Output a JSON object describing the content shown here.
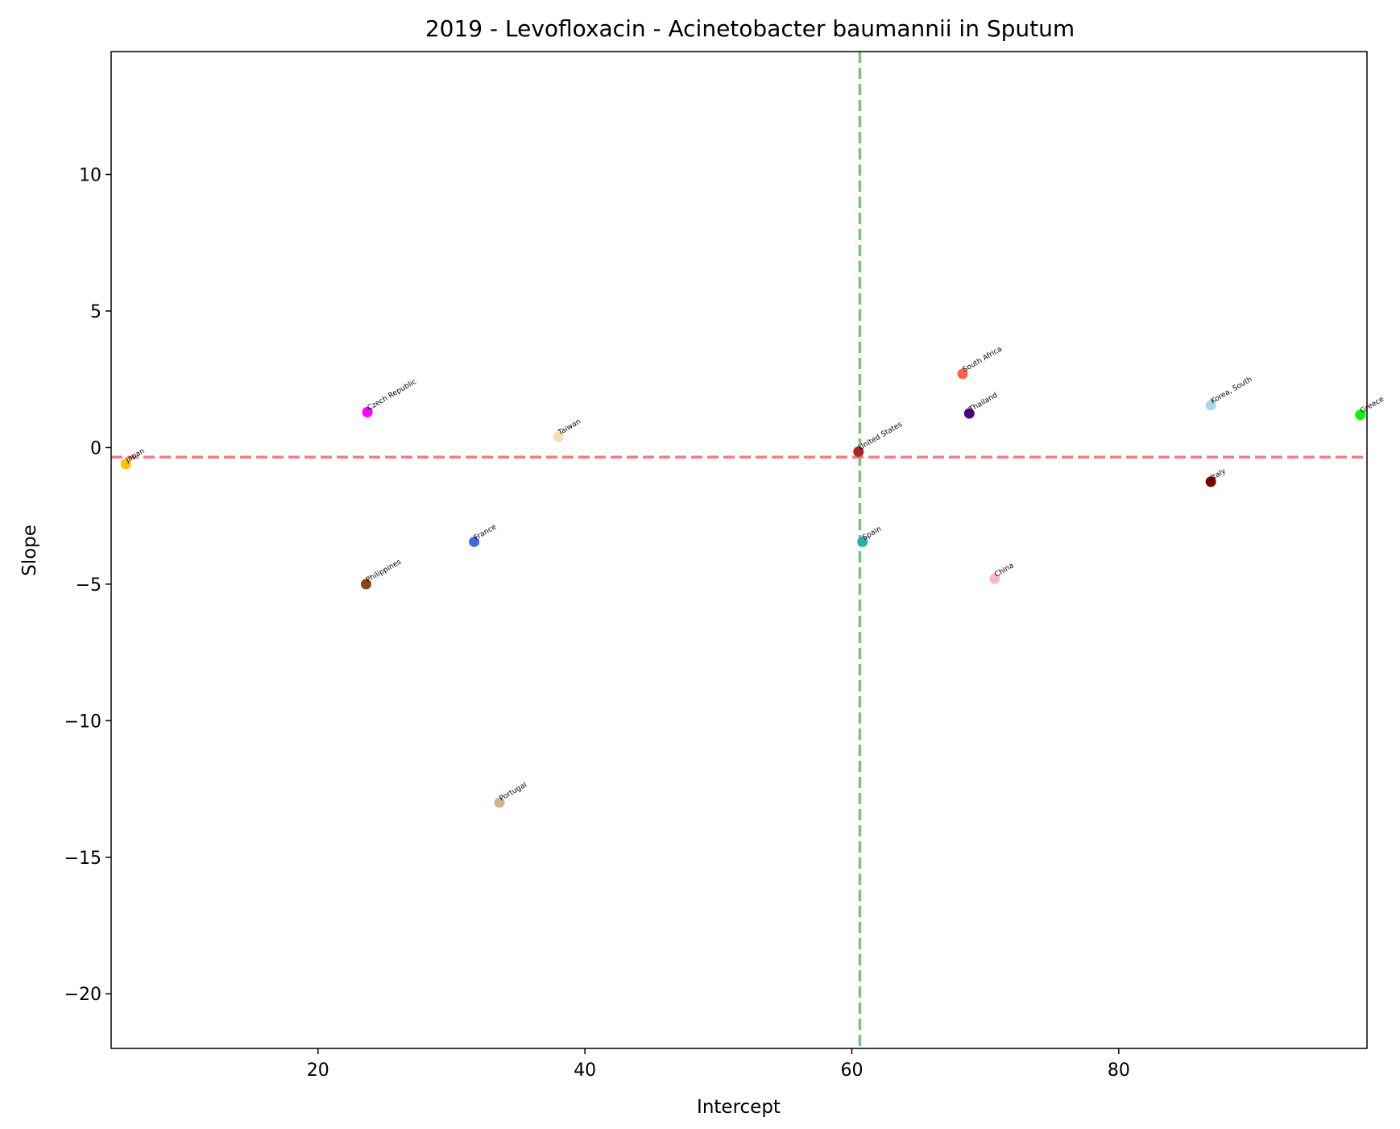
{
  "chart_data": {
    "type": "scatter",
    "title": "2019 - Levofloxacin - Acinetobacter baumannii in Sputum",
    "xlabel": "Intercept",
    "ylabel": "Slope",
    "xlim": [
      4.5,
      98.6
    ],
    "ylim": [
      -22,
      14.5
    ],
    "xticks": [
      20,
      40,
      60,
      80
    ],
    "yticks": [
      10,
      5,
      0,
      -5,
      -10,
      -15,
      -20
    ],
    "xtick_labels": [
      "20",
      "40",
      "60",
      "80"
    ],
    "ytick_labels": [
      "10",
      "5",
      "0",
      "−5",
      "−10",
      "−15",
      "−20"
    ],
    "grid": false,
    "reference_lines": [
      {
        "orientation": "horizontal",
        "value": -0.35,
        "color": "#f08080",
        "style": "dashed"
      },
      {
        "orientation": "vertical",
        "value": 60.6,
        "color": "#7fbf7f",
        "style": "dashed"
      }
    ],
    "points": [
      {
        "label": "Japan",
        "x": 5.6,
        "y": -0.6,
        "color": "#ffc000"
      },
      {
        "label": "Czech Republic",
        "x": 23.7,
        "y": 1.3,
        "color": "#ff00ff"
      },
      {
        "label": "Taiwan",
        "x": 38.0,
        "y": 0.4,
        "color": "#f5deb3"
      },
      {
        "label": "Philippines",
        "x": 23.6,
        "y": -5.0,
        "color": "#8b4513"
      },
      {
        "label": "France",
        "x": 31.7,
        "y": -3.45,
        "color": "#4169e1"
      },
      {
        "label": "Portugal",
        "x": 33.6,
        "y": -13.0,
        "color": "#d2b48c"
      },
      {
        "label": "United States",
        "x": 60.5,
        "y": -0.15,
        "color": "#b22222"
      },
      {
        "label": "Spain",
        "x": 60.8,
        "y": -3.45,
        "color": "#20b2aa"
      },
      {
        "label": "South Africa",
        "x": 68.3,
        "y": 2.7,
        "color": "#ff6347"
      },
      {
        "label": "Thailand",
        "x": 68.8,
        "y": 1.25,
        "color": "#4b0082"
      },
      {
        "label": "China",
        "x": 70.7,
        "y": -4.8,
        "color": "#ffb6c1"
      },
      {
        "label": "Korea, South",
        "x": 86.9,
        "y": 1.55,
        "color": "#add8e6"
      },
      {
        "label": "Italy",
        "x": 86.9,
        "y": -1.25,
        "color": "#800000"
      },
      {
        "label": "Greece",
        "x": 98.1,
        "y": 1.2,
        "color": "#00ff00"
      }
    ]
  }
}
